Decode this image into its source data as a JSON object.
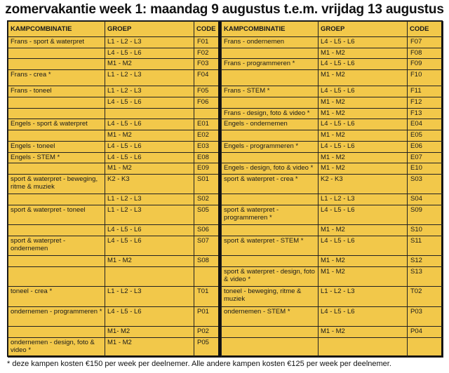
{
  "title": "zomervakantie week 1: maandag 9 augustus t.e.m. vrijdag 13 augustus",
  "headers": {
    "kamp": "KAMPCOMBINATIE",
    "groep": "GROEP",
    "code": "CODE"
  },
  "left_rows": [
    {
      "kamp": "Frans - sport & waterpret",
      "groep": "L1 - L2 - L3",
      "code": "F01"
    },
    {
      "kamp": "",
      "groep": "L4 - L5 - L6",
      "code": "F02"
    },
    {
      "kamp": "",
      "groep": "M1 - M2",
      "code": "F03"
    },
    {
      "kamp": "Frans - crea *",
      "groep": "L1 - L2 - L3",
      "code": "F04"
    },
    {
      "kamp": "Frans - toneel",
      "groep": "L1 - L2 - L3",
      "code": "F05"
    },
    {
      "kamp": "",
      "groep": "L4 - L5 - L6",
      "code": "F06"
    },
    {
      "kamp": "",
      "groep": "",
      "code": ""
    },
    {
      "kamp": "Engels - sport & waterpret",
      "groep": "L4 - L5 - L6",
      "code": "E01"
    },
    {
      "kamp": "",
      "groep": "M1 - M2",
      "code": "E02"
    },
    {
      "kamp": "Engels - toneel",
      "groep": "L4 - L5 - L6",
      "code": "E03"
    },
    {
      "kamp": "Engels - STEM *",
      "groep": "L4 - L5 - L6",
      "code": "E08"
    },
    {
      "kamp": "",
      "groep": "M1 - M2",
      "code": "E09"
    },
    {
      "kamp": "sport & waterpret - beweging, ritme & muziek",
      "groep": "K2 - K3",
      "code": "S01"
    },
    {
      "kamp": "",
      "groep": "L1 - L2 - L3",
      "code": "S02"
    },
    {
      "kamp": "sport & waterpret - toneel",
      "groep": "L1 - L2 - L3",
      "code": "S05"
    },
    {
      "kamp": "",
      "groep": "L4 - L5 - L6",
      "code": "S06"
    },
    {
      "kamp": "sport & waterpret - ondernemen",
      "groep": "L4 - L5 - L6",
      "code": "S07"
    },
    {
      "kamp": "",
      "groep": "M1 - M2",
      "code": "S08"
    },
    {
      "kamp": "",
      "groep": "",
      "code": ""
    },
    {
      "kamp": "toneel - crea *",
      "groep": "L1 - L2 - L3",
      "code": "T01"
    },
    {
      "kamp": "ondernemen - programmeren *",
      "groep": "L4 - L5 - L6",
      "code": "P01"
    },
    {
      "kamp": "",
      "groep": "M1- M2",
      "code": "P02"
    },
    {
      "kamp": "ondernemen - design, foto & video *",
      "groep": "M1 - M2",
      "code": "P05"
    }
  ],
  "right_rows": [
    {
      "kamp": "Frans - ondernemen",
      "groep": "L4 - L5 - L6",
      "code": "F07"
    },
    {
      "kamp": "",
      "groep": "M1 - M2",
      "code": "F08"
    },
    {
      "kamp": "Frans - programmeren *",
      "groep": "L4 - L5 - L6",
      "code": "F09"
    },
    {
      "kamp": "",
      "groep": "M1 - M2",
      "code": "F10"
    },
    {
      "kamp": "Frans - STEM *",
      "groep": "L4 - L5 - L6",
      "code": "F11"
    },
    {
      "kamp": "",
      "groep": "M1 - M2",
      "code": "F12"
    },
    {
      "kamp": "Frans - design, foto & video *",
      "groep": "M1 - M2",
      "code": "F13"
    },
    {
      "kamp": "Engels - ondernemen",
      "groep": "L4 - L5 - L6",
      "code": "E04"
    },
    {
      "kamp": "",
      "groep": "M1 - M2",
      "code": "E05"
    },
    {
      "kamp": "Engels - programmeren *",
      "groep": "L4 - L5 - L6",
      "code": "E06"
    },
    {
      "kamp": "",
      "groep": "M1 - M2",
      "code": "E07"
    },
    {
      "kamp": "Engels - design, foto & video *",
      "groep": "M1 - M2",
      "code": "E10"
    },
    {
      "kamp": "sport & waterpret - crea *",
      "groep": "K2 - K3",
      "code": "S03"
    },
    {
      "kamp": "",
      "groep": "L1 - L2 - L3",
      "code": "S04"
    },
    {
      "kamp": "sport & waterpret - programmeren *",
      "groep": "L4 - L5 - L6",
      "code": "S09"
    },
    {
      "kamp": "",
      "groep": "M1 - M2",
      "code": "S10"
    },
    {
      "kamp": "sport & waterpret - STEM *",
      "groep": "L4 - L5 - L6",
      "code": "S11"
    },
    {
      "kamp": "",
      "groep": "M1 - M2",
      "code": "S12"
    },
    {
      "kamp": "sport & waterpret - design, foto & video *",
      "groep": "M1 - M2",
      "code": "S13"
    },
    {
      "kamp": "toneel - beweging, ritme & muziek",
      "groep": "L1 - L2 - L3",
      "code": "T02"
    },
    {
      "kamp": "ondernemen - STEM *",
      "groep": "L4 - L5 - L6",
      "code": "P03"
    },
    {
      "kamp": "",
      "groep": "M1 - M2",
      "code": "P04"
    },
    {
      "kamp": "",
      "groep": "",
      "code": ""
    }
  ],
  "footnote": "* deze kampen kosten €150 per week per deelnemer. Alle andere kampen kosten €125 per week per deelnemer.",
  "colors": {
    "table_background": "#f2c84a",
    "border": "#111111"
  }
}
